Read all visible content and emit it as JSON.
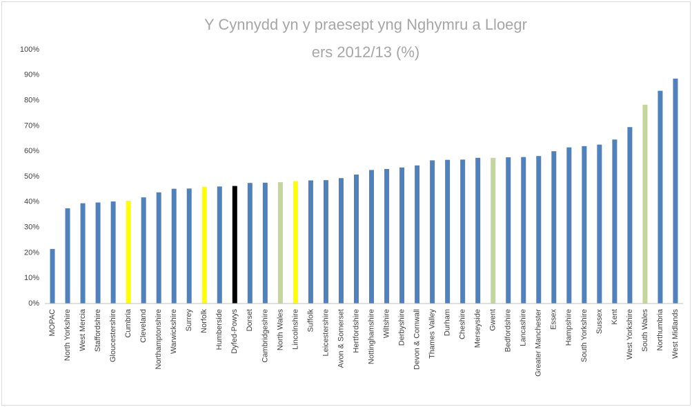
{
  "chart_data": {
    "type": "bar",
    "title": [
      "Y Cynnydd yn y praesept yng Nghymru a Lloegr",
      "ers 2012/13 (%)"
    ],
    "categories": [
      "MOPAC",
      "North Yorkshire",
      "West Mercia",
      "Staffordshire",
      "Gloucestershire",
      "Cumbria",
      "Cleveland",
      "Northamptonshire",
      "Warwickshire",
      "Surrey",
      "Norfolk",
      "Humberside",
      "Dyfed-Powys",
      "Dorset",
      "Cambridgeshire",
      "North Wales",
      "Lincolnshire",
      "Suffolk",
      "Leicestershire",
      "Avon & Somerset",
      "Hertfordshire",
      "Nottinghamshire",
      "Wiltshire",
      "Derbyshire",
      "Devon & Cornwall",
      "Thames Valley",
      "Durham",
      "Cheshire",
      "Merseyside",
      "Gwent",
      "Bedfordshire",
      "Lancashire",
      "Greater Manchester",
      "Essex",
      "Hampshire",
      "South Yorkshire",
      "Sussex",
      "Kent",
      "West Yorkshire",
      "South Wales",
      "Northumbria",
      "West Midlands"
    ],
    "values": [
      21.5,
      37.5,
      39.5,
      39.8,
      40.2,
      40.5,
      41.8,
      43.8,
      45.2,
      45.3,
      46,
      46.1,
      46.3,
      47.5,
      47.6,
      47.8,
      48.2,
      48.5,
      48.6,
      49.4,
      50.8,
      52.6,
      53,
      53.6,
      54.4,
      56.4,
      56.6,
      56.7,
      57.4,
      57.4,
      57.6,
      57.7,
      58.1,
      60,
      61.5,
      62,
      62.6,
      64.6,
      69.5,
      78.3,
      83.8,
      88.6
    ],
    "colors": [
      "#4f81bd",
      "#4f81bd",
      "#4f81bd",
      "#4f81bd",
      "#4f81bd",
      "#ffff00",
      "#4f81bd",
      "#4f81bd",
      "#4f81bd",
      "#4f81bd",
      "#ffff00",
      "#4f81bd",
      "#000000",
      "#4f81bd",
      "#4f81bd",
      "#c3d69b",
      "#ffff00",
      "#4f81bd",
      "#4f81bd",
      "#4f81bd",
      "#4f81bd",
      "#4f81bd",
      "#4f81bd",
      "#4f81bd",
      "#4f81bd",
      "#4f81bd",
      "#4f81bd",
      "#4f81bd",
      "#4f81bd",
      "#c3d69b",
      "#4f81bd",
      "#4f81bd",
      "#4f81bd",
      "#4f81bd",
      "#4f81bd",
      "#4f81bd",
      "#4f81bd",
      "#4f81bd",
      "#4f81bd",
      "#c3d69b",
      "#4f81bd",
      "#4f81bd"
    ],
    "ylim": [
      0,
      100
    ],
    "yticks": [
      {
        "value": 0,
        "label": "0%"
      },
      {
        "value": 10,
        "label": "10%"
      },
      {
        "value": 20,
        "label": "20%"
      },
      {
        "value": 30,
        "label": "30%"
      },
      {
        "value": 40,
        "label": "40%"
      },
      {
        "value": 50,
        "label": "50%"
      },
      {
        "value": 60,
        "label": "60%"
      },
      {
        "value": 70,
        "label": "70%"
      },
      {
        "value": 80,
        "label": "80%"
      },
      {
        "value": 90,
        "label": "90%"
      },
      {
        "value": 100,
        "label": "100%"
      }
    ],
    "grid": false
  }
}
